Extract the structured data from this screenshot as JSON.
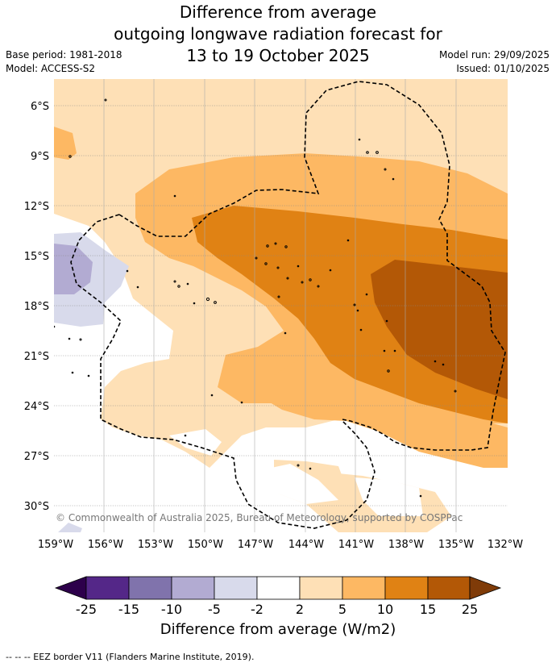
{
  "title": {
    "line1": "Difference from average",
    "line2": "outgoing longwave radiation forecast for",
    "line3": "13 to 19 October 2025"
  },
  "meta": {
    "base_period": "Base period: 1981-2018",
    "model": "Model: ACCESS-S2",
    "model_run": "Model run: 29/09/2025",
    "issued": "Issued: 01/10/2025"
  },
  "map": {
    "lat_ticks": [
      "6°S",
      "9°S",
      "12°S",
      "15°S",
      "18°S",
      "21°S",
      "24°S",
      "27°S",
      "30°S"
    ],
    "lon_ticks": [
      "159°W",
      "156°W",
      "153°W",
      "150°W",
      "147°W",
      "144°W",
      "141°W",
      "138°W",
      "135°W",
      "132°W"
    ],
    "attribution": "© Commonwealth of Australia 2025, Bureau of Meteorology, supported by COSPPac"
  },
  "colorbar": {
    "labels": [
      "-25",
      "-15",
      "-10",
      "-5",
      "-2",
      "2",
      "5",
      "10",
      "15",
      "25"
    ],
    "colors": [
      "#2d004b",
      "#542788",
      "#8073ac",
      "#b2abd2",
      "#d8daeb",
      "#ffffff",
      "#fee0b6",
      "#fdb863",
      "#e08214",
      "#b35806",
      "#7f3b08"
    ],
    "title": "Difference from average (W/m2)"
  },
  "footer": "-- -- -- EEZ border V11 (Flanders Marine Institute, 2019)."
}
